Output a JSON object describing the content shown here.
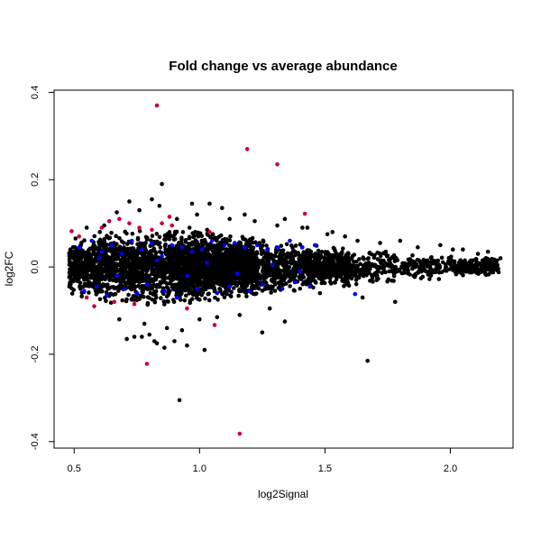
{
  "chart_data": {
    "type": "scatter",
    "title": "Fold change vs average abundance",
    "xlabel": "log2Signal",
    "ylabel": "log2FC",
    "xlim": [
      0.42,
      2.25
    ],
    "ylim": [
      -0.415,
      0.405
    ],
    "x_ticks": [
      0.5,
      1.0,
      1.5,
      2.0
    ],
    "x_tick_labels": [
      "0.5",
      "1.0",
      "1.5",
      "2.0"
    ],
    "y_ticks": [
      -0.4,
      -0.2,
      0.0,
      0.2,
      0.4
    ],
    "y_tick_labels": [
      "-0.4",
      "-0.2",
      "0.0",
      "0.2",
      "0.4"
    ],
    "grid": false,
    "legend": "none",
    "point_colors": {
      "black": "#000000",
      "blue": "#0000ff",
      "red": "#cd0033"
    },
    "series": [
      {
        "color": "black",
        "x": [
          0.92,
          1.67,
          0.86,
          0.77,
          0.8,
          0.82,
          0.83,
          0.9,
          0.95,
          1.02,
          0.71,
          0.74,
          1.25,
          1.34,
          1.65,
          1.48,
          1.78,
          0.72,
          0.81,
          0.85,
          0.97,
          1.04,
          1.09,
          1.18,
          1.34,
          1.43,
          1.53,
          1.63,
          1.8,
          1.96,
          2.05,
          2.15,
          2.2,
          0.55,
          0.62,
          0.67,
          0.76,
          0.84,
          0.91,
          0.99,
          1.12,
          1.22,
          1.31,
          1.41,
          1.51,
          1.58,
          1.72,
          1.87,
          2.01,
          2.11,
          0.78,
          0.87,
          0.93,
          1.0,
          1.07,
          1.16,
          1.28,
          0.88,
          0.96,
          1.03,
          0.68
        ],
        "y": [
          -0.305,
          -0.215,
          -0.185,
          -0.16,
          -0.155,
          -0.17,
          -0.175,
          -0.17,
          -0.18,
          -0.19,
          -0.165,
          -0.16,
          -0.15,
          -0.125,
          -0.07,
          -0.06,
          -0.08,
          0.15,
          0.155,
          0.19,
          0.145,
          0.145,
          0.135,
          0.12,
          0.11,
          0.09,
          0.08,
          0.06,
          0.06,
          0.05,
          0.04,
          0.035,
          0.02,
          0.09,
          0.095,
          0.125,
          0.13,
          0.14,
          0.11,
          0.12,
          0.11,
          0.105,
          0.095,
          0.09,
          0.075,
          0.07,
          0.055,
          0.045,
          0.04,
          0.03,
          -0.13,
          -0.14,
          -0.145,
          -0.12,
          -0.115,
          -0.11,
          -0.095,
          0.08,
          0.09,
          0.085,
          -0.12
        ]
      },
      {
        "color": "red",
        "x": [
          0.83,
          1.19,
          1.31,
          1.42,
          0.79,
          1.16,
          1.06,
          0.49,
          0.52,
          0.58,
          0.61,
          0.64,
          0.68,
          0.72,
          0.76,
          0.81,
          0.85,
          0.88,
          0.89,
          1.04,
          0.55,
          0.66,
          0.74,
          0.95
        ],
        "y": [
          0.37,
          0.27,
          0.235,
          0.122,
          -0.222,
          -0.382,
          -0.133,
          0.082,
          0.07,
          -0.09,
          0.09,
          0.105,
          0.11,
          0.1,
          0.09,
          0.085,
          0.1,
          0.115,
          0.095,
          0.08,
          -0.07,
          -0.08,
          -0.085,
          -0.095
        ]
      },
      {
        "color": "blue",
        "x": [
          0.52,
          0.57,
          0.61,
          0.65,
          0.69,
          0.73,
          0.77,
          0.81,
          0.85,
          0.89,
          0.93,
          0.97,
          1.01,
          1.05,
          1.1,
          1.14,
          1.18,
          1.23,
          1.27,
          1.31,
          1.36,
          1.41,
          1.46,
          1.62,
          0.54,
          0.59,
          0.63,
          0.7,
          0.75,
          0.79,
          0.86,
          0.91,
          0.99,
          1.07,
          1.12,
          1.2,
          1.25,
          1.33,
          1.38,
          1.44,
          0.6,
          0.67,
          0.83,
          0.95,
          1.03,
          1.15,
          1.29,
          1.4
        ],
        "y": [
          0.045,
          0.06,
          0.035,
          0.05,
          0.03,
          0.06,
          0.04,
          0.055,
          0.025,
          0.05,
          0.045,
          0.035,
          0.04,
          0.06,
          0.05,
          0.055,
          0.045,
          0.05,
          0.04,
          0.045,
          0.06,
          0.045,
          0.05,
          -0.062,
          -0.055,
          -0.045,
          -0.065,
          -0.05,
          -0.06,
          -0.04,
          -0.055,
          -0.07,
          -0.05,
          -0.06,
          -0.045,
          -0.055,
          -0.04,
          -0.05,
          -0.035,
          -0.045,
          0.02,
          -0.02,
          0.015,
          -0.02,
          0.01,
          -0.015,
          0.005,
          -0.01
        ]
      }
    ],
    "dense_cloud": {
      "color": "black",
      "x_range": [
        0.45,
        2.2
      ],
      "center_y": 0.0,
      "spread_profile": [
        [
          0.45,
          0.045
        ],
        [
          0.6,
          0.06
        ],
        [
          0.8,
          0.065
        ],
        [
          1.0,
          0.06
        ],
        [
          1.2,
          0.05
        ],
        [
          1.5,
          0.035
        ],
        [
          1.8,
          0.025
        ],
        [
          2.2,
          0.015
        ]
      ]
    }
  }
}
